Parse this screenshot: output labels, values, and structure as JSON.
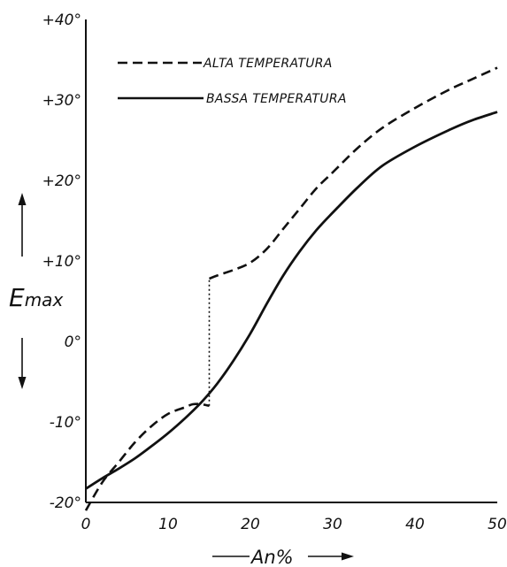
{
  "chart_data": {
    "type": "line",
    "xlabel": "An%",
    "ylabel_main": "E",
    "ylabel_sub": "max",
    "xlim": [
      0,
      50
    ],
    "ylim": [
      -20,
      40
    ],
    "x_ticks": [
      {
        "value": 0,
        "label": "0"
      },
      {
        "value": 10,
        "label": "10"
      },
      {
        "value": 20,
        "label": "20"
      },
      {
        "value": 30,
        "label": "30"
      },
      {
        "value": 40,
        "label": "40"
      },
      {
        "value": 50,
        "label": "50"
      }
    ],
    "y_ticks": [
      {
        "value": 40,
        "label": "+40°"
      },
      {
        "value": 30,
        "label": "+30°"
      },
      {
        "value": 20,
        "label": "+20°"
      },
      {
        "value": 10,
        "label": "+10°"
      },
      {
        "value": 0,
        "label": "0°"
      },
      {
        "value": -10,
        "label": "-10°"
      },
      {
        "value": -20,
        "label": "-20°"
      }
    ],
    "grid": false,
    "legend_position": "top-left",
    "series": [
      {
        "name": "ALTA TEMPERATURA",
        "style": "dashed",
        "segments": [
          {
            "x": [
              0,
              2,
              4,
              6,
              8,
              10,
              12,
              13,
              14,
              15
            ],
            "y": [
              -21,
              -17.5,
              -15,
              -12.5,
              -10.5,
              -9,
              -8.2,
              -7.8,
              -7.8,
              -8
            ]
          },
          {
            "x": [
              15,
              16,
              18,
              20,
              22,
              24,
              26,
              28,
              30,
              33,
              36,
              40,
              44,
              47,
              50
            ],
            "y": [
              7.8,
              8.2,
              8.9,
              9.8,
              11.5,
              14,
              16.5,
              19,
              21,
              24,
              26.5,
              29,
              31.2,
              32.6,
              34
            ]
          }
        ]
      },
      {
        "name": "BASSA TEMPERATURA",
        "style": "solid",
        "segments": [
          {
            "x": [
              0,
              2,
              4,
              6,
              8,
              10,
              12,
              14,
              16,
              18,
              20,
              22,
              24,
              26,
              28,
              30,
              33,
              36,
              40,
              44,
              47,
              50
            ],
            "y": [
              -18.3,
              -17,
              -15.8,
              -14.5,
              -13,
              -11.4,
              -9.6,
              -7.6,
              -5.2,
              -2.3,
              1,
              4.7,
              8.2,
              11.2,
              13.8,
              16,
              19.1,
              21.8,
              24.2,
              26.2,
              27.5,
              28.5
            ]
          }
        ]
      }
    ],
    "annotations": [
      {
        "type": "dotted-connector",
        "x": 15,
        "y_from": -8,
        "y_to": 7.8
      }
    ]
  }
}
